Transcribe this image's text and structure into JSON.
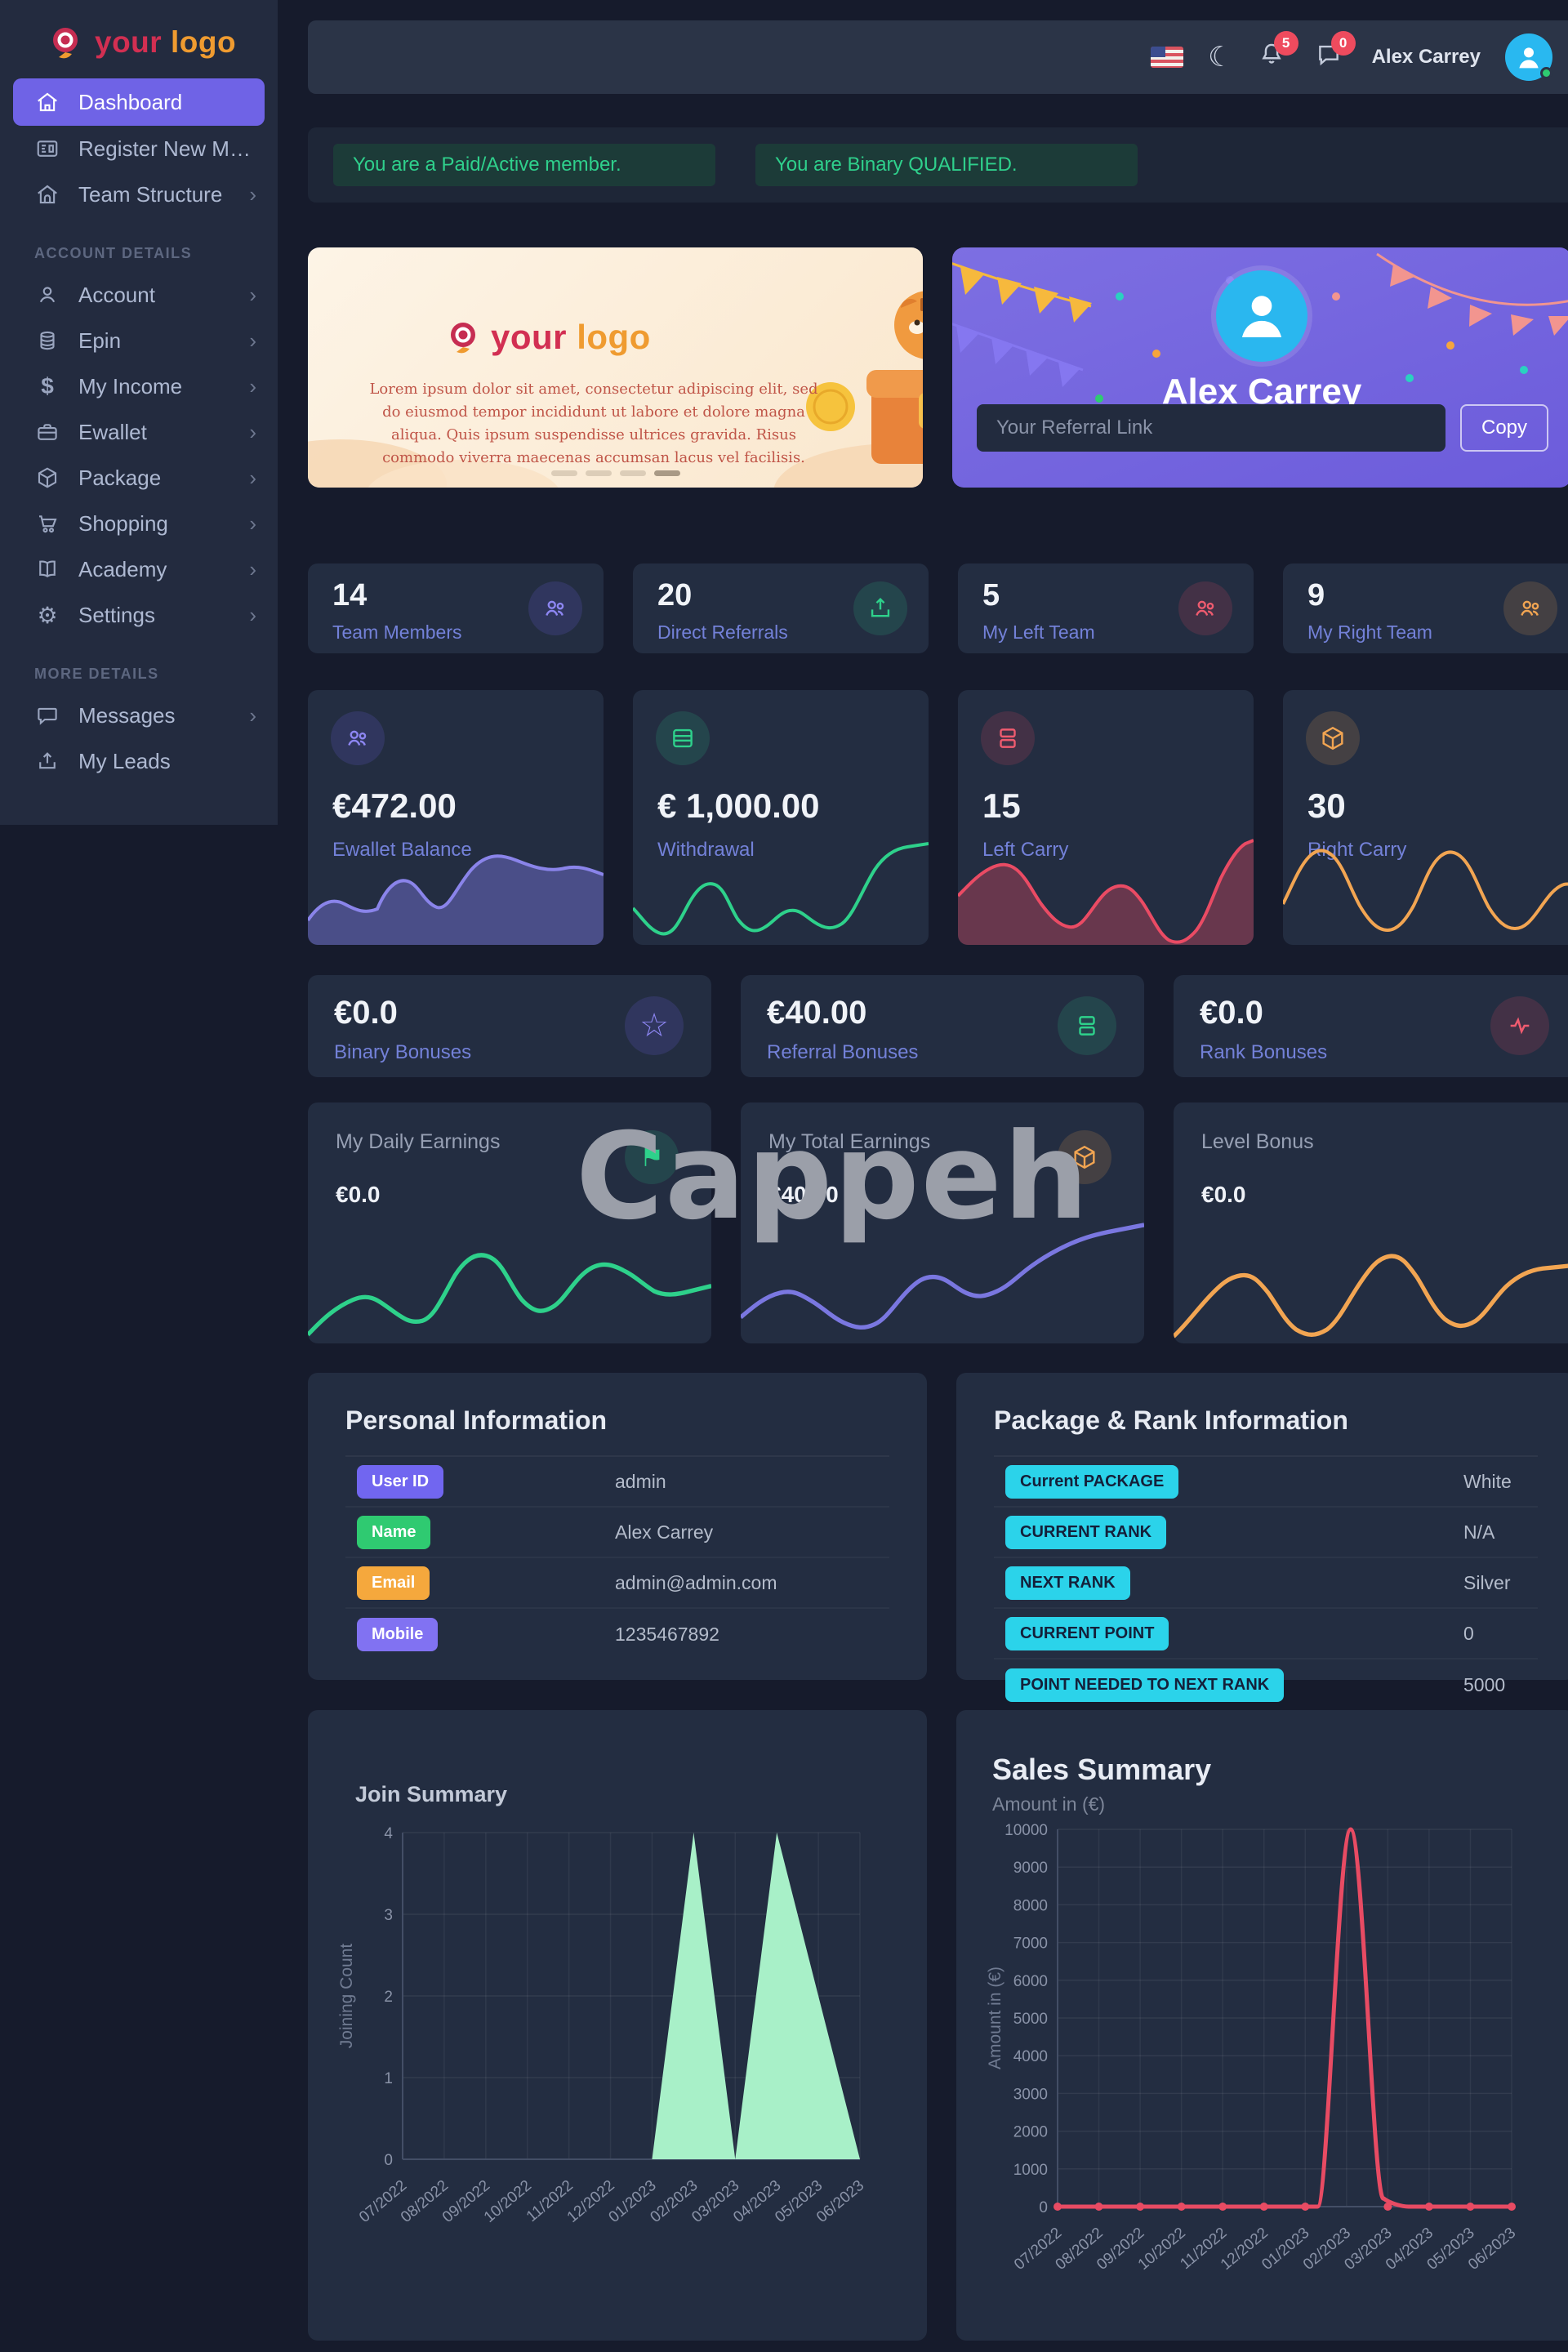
{
  "theme": {
    "page_bg": "#161b2c",
    "sidebar_bg": "#232b3f",
    "card_bg": "#232d41",
    "topbar_bg": "#2b3447",
    "accent_purple": "#6f63e6",
    "label_indigo": "#7381d8",
    "green": "#2ed18b",
    "red": "#ea4b64",
    "orange": "#f2a552",
    "cyan_badge": "#2bd3ea",
    "mint_fill": "#a8f0c8",
    "alert_green": "#2fd08c",
    "avatar_blue": "#29b8f0",
    "badge_red": "#ee4b5e"
  },
  "watermark": "Cappeh",
  "sidebar": {
    "logo_part1": "your",
    "logo_part2": "logo",
    "section_account": "ACCOUNT DETAILS",
    "section_more": "MORE DETAILS",
    "items": {
      "dashboard": "Dashboard",
      "register": "Register New Mem...",
      "team_structure": "Team Structure",
      "account": "Account",
      "epin": "Epin",
      "my_income": "My Income",
      "ewallet": "Ewallet",
      "package": "Package",
      "shopping": "Shopping",
      "academy": "Academy",
      "settings": "Settings",
      "messages": "Messages",
      "my_leads": "My Leads"
    }
  },
  "topbar": {
    "user_name": "Alex Carrey",
    "bell_badge": "5",
    "chat_badge": "0",
    "icons": [
      "us-flag-icon",
      "moon-icon",
      "bell-icon",
      "chat-icon",
      "avatar"
    ]
  },
  "alerts": {
    "paid": "You are a Paid/Active member.",
    "binary": "You are Binary QUALIFIED."
  },
  "promo": {
    "logo_part1": "your",
    "logo_part2": "logo",
    "text": "Lorem ipsum dolor sit amet, consectetur adipiscing elit, sed do eiusmod tempor incididunt ut labore et dolore magna aliqua. Quis ipsum suspendisse ultrices gravida. Risus commodo viverra maecenas accumsan lacus vel facilisis.",
    "active_dot_index": 3
  },
  "referral": {
    "name": "Alex Carrey",
    "input_placeholder": "Your Referral Link",
    "copy_label": "Copy"
  },
  "stats": [
    {
      "value": "14",
      "label": "Team Members",
      "color": "purple",
      "icon": "users-icon"
    },
    {
      "value": "20",
      "label": "Direct Referrals",
      "color": "green",
      "icon": "share-up-icon"
    },
    {
      "value": "5",
      "label": "My Left Team",
      "color": "red",
      "icon": "users-icon"
    },
    {
      "value": "9",
      "label": "My Right Team",
      "color": "orange",
      "icon": "users-icon"
    }
  ],
  "wallet_cards": [
    {
      "value": "€472.00",
      "label": "Ewallet Balance",
      "color": "purple",
      "icon": "users-icon",
      "chart": "area"
    },
    {
      "value": "€ 1,000.00",
      "label": "Withdrawal",
      "color": "green",
      "icon": "card-icon",
      "chart": "line"
    },
    {
      "value": "15",
      "label": "Left Carry",
      "color": "red",
      "icon": "cards-icon",
      "chart": "area"
    },
    {
      "value": "30",
      "label": "Right Carry",
      "color": "orange",
      "icon": "package-icon",
      "chart": "line"
    }
  ],
  "bonus_cards": [
    {
      "value": "€0.0",
      "label": "Binary Bonuses",
      "color": "purple",
      "icon": "star-icon"
    },
    {
      "value": "€40.00",
      "label": "Referral Bonuses",
      "color": "green",
      "icon": "cards-icon"
    },
    {
      "value": "€0.0",
      "label": "Rank Bonuses",
      "color": "red",
      "icon": "pulse-icon"
    }
  ],
  "earning_cards": [
    {
      "label": "My Daily Earnings",
      "value": "€0.0",
      "color": "green",
      "icon": "flag-icon"
    },
    {
      "label": "My Total Earnings",
      "value": "€40.00",
      "color": "orange",
      "icon": "package-icon"
    },
    {
      "label": "Level Bonus",
      "value": "€0.0",
      "color": "orange",
      "icon": ""
    }
  ],
  "personal": {
    "title": "Personal Information",
    "rows": [
      {
        "badge": "User ID",
        "value": "admin"
      },
      {
        "badge": "Name",
        "value": "Alex Carrey"
      },
      {
        "badge": "Email",
        "value": "admin@admin.com"
      },
      {
        "badge": "Mobile",
        "value": "1235467892"
      }
    ]
  },
  "package_rank": {
    "title": "Package & Rank Information",
    "rows": [
      {
        "badge": "Current PACKAGE",
        "value": "White"
      },
      {
        "badge": "CURRENT RANK",
        "value": "N/A"
      },
      {
        "badge": "NEXT RANK",
        "value": "Silver"
      },
      {
        "badge": "CURRENT POINT",
        "value": "0"
      },
      {
        "badge": "POINT NEEDED TO NEXT RANK",
        "value": "5000"
      }
    ]
  },
  "glyphs": {
    "moon": "☾",
    "star": "☆",
    "flag": "⚑",
    "gear": "⚙",
    "dollar": "$",
    "chevron": "›"
  },
  "chart_data": [
    {
      "id": "join",
      "type": "area",
      "title": "Join Summary",
      "ylabel": "Joining Count",
      "categories": [
        "07/2022",
        "08/2022",
        "09/2022",
        "10/2022",
        "11/2022",
        "12/2022",
        "01/2023",
        "02/2023",
        "03/2023",
        "04/2023",
        "05/2023",
        "06/2023"
      ],
      "values": [
        0,
        0,
        0,
        0,
        0,
        0,
        0,
        4,
        0,
        4,
        2,
        0
      ],
      "ylim": [
        0,
        4
      ],
      "yticks": [
        0,
        1,
        2,
        3,
        4
      ],
      "grid": true,
      "legend": "none",
      "color": "#a8f0c8"
    },
    {
      "id": "sales",
      "type": "line",
      "title": "Sales Summary",
      "subtitle": "Amount in (€)",
      "ylabel": "Amount in (€)",
      "categories": [
        "07/2022",
        "08/2022",
        "09/2022",
        "10/2022",
        "11/2022",
        "12/2022",
        "01/2023",
        "02/2023",
        "03/2023",
        "04/2023",
        "05/2023",
        "06/2023"
      ],
      "values": [
        0,
        0,
        0,
        0,
        0,
        0,
        0,
        10000,
        0,
        0,
        0,
        0
      ],
      "ylim": [
        0,
        10000
      ],
      "yticks": [
        0,
        1000,
        2000,
        3000,
        4000,
        5000,
        6000,
        7000,
        8000,
        9000,
        10000
      ],
      "grid": true,
      "legend": "none",
      "color": "#e84b63"
    }
  ]
}
